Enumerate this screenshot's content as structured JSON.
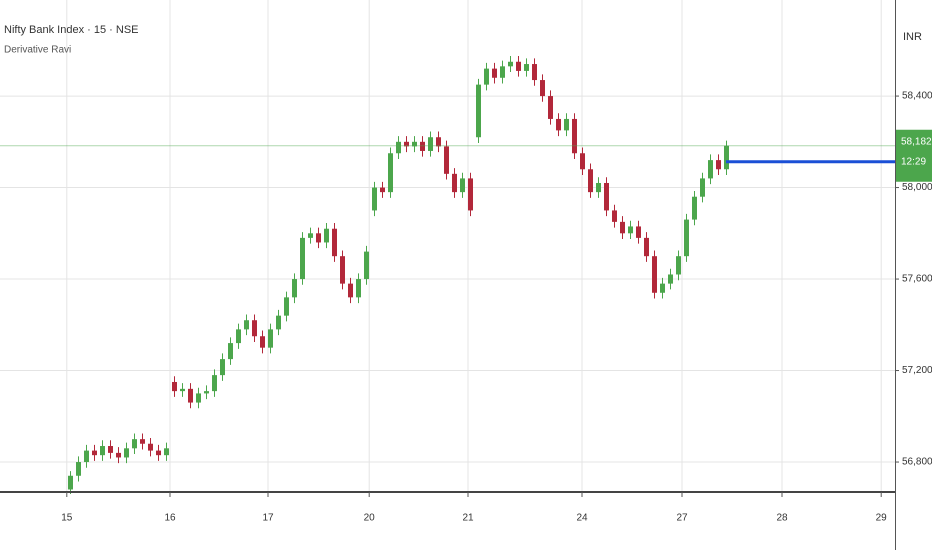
{
  "chart_data": {
    "type": "candlestick",
    "title": "Nifty Bank Index · 15 · NSE",
    "subtitle": "Derivative Ravi",
    "currency": "INR",
    "up_color": "#4ca64c",
    "down_color": "#b2283a",
    "ohlc": [
      [
        56680,
        56760,
        56660,
        56740
      ],
      [
        56740,
        56825,
        56715,
        56800
      ],
      [
        56800,
        56875,
        56775,
        56850
      ],
      [
        56850,
        56875,
        56805,
        56830
      ],
      [
        56830,
        56895,
        56805,
        56870
      ],
      [
        56870,
        56895,
        56815,
        56840
      ],
      [
        56840,
        56865,
        56795,
        56820
      ],
      [
        56820,
        56885,
        56795,
        56860
      ],
      [
        56860,
        56925,
        56835,
        56900
      ],
      [
        56900,
        56925,
        56855,
        56880
      ],
      [
        56880,
        56905,
        56825,
        56850
      ],
      [
        56850,
        56875,
        56805,
        56830
      ],
      [
        56830,
        56885,
        56805,
        56860
      ],
      [
        57150,
        57175,
        57085,
        57110
      ],
      [
        57110,
        57145,
        57085,
        57120
      ],
      [
        57120,
        57145,
        57035,
        57060
      ],
      [
        57060,
        57125,
        57035,
        57100
      ],
      [
        57100,
        57135,
        57075,
        57110
      ],
      [
        57110,
        57205,
        57085,
        57180
      ],
      [
        57180,
        57275,
        57155,
        57250
      ],
      [
        57250,
        57345,
        57225,
        57320
      ],
      [
        57320,
        57405,
        57295,
        57380
      ],
      [
        57380,
        57445,
        57355,
        57420
      ],
      [
        57420,
        57445,
        57325,
        57350
      ],
      [
        57350,
        57375,
        57275,
        57300
      ],
      [
        57300,
        57405,
        57275,
        57380
      ],
      [
        57380,
        57465,
        57355,
        57440
      ],
      [
        57440,
        57545,
        57415,
        57520
      ],
      [
        57520,
        57625,
        57495,
        57600
      ],
      [
        57600,
        57805,
        57575,
        57780
      ],
      [
        57780,
        57825,
        57755,
        57800
      ],
      [
        57800,
        57825,
        57735,
        57760
      ],
      [
        57760,
        57845,
        57735,
        57820
      ],
      [
        57820,
        57845,
        57675,
        57700
      ],
      [
        57700,
        57725,
        57555,
        57580
      ],
      [
        57580,
        57605,
        57495,
        57520
      ],
      [
        57520,
        57625,
        57495,
        57600
      ],
      [
        57600,
        57745,
        57575,
        57720
      ],
      [
        57900,
        58025,
        57875,
        58000
      ],
      [
        58000,
        58025,
        57955,
        57980
      ],
      [
        57980,
        58175,
        57955,
        58150
      ],
      [
        58150,
        58225,
        58125,
        58200
      ],
      [
        58200,
        58225,
        58155,
        58180
      ],
      [
        58180,
        58225,
        58155,
        58200
      ],
      [
        58200,
        58225,
        58135,
        58160
      ],
      [
        58160,
        58245,
        58135,
        58220
      ],
      [
        58220,
        58245,
        58155,
        58180
      ],
      [
        58180,
        58205,
        58035,
        58060
      ],
      [
        58060,
        58085,
        57955,
        57980
      ],
      [
        57980,
        58065,
        57955,
        58040
      ],
      [
        58040,
        58065,
        57875,
        57900
      ],
      [
        58220,
        58475,
        58195,
        58450
      ],
      [
        58450,
        58545,
        58425,
        58520
      ],
      [
        58520,
        58545,
        58455,
        58480
      ],
      [
        58480,
        58555,
        58455,
        58530
      ],
      [
        58530,
        58575,
        58505,
        58550
      ],
      [
        58550,
        58575,
        58485,
        58510
      ],
      [
        58510,
        58565,
        58485,
        58540
      ],
      [
        58540,
        58565,
        58445,
        58470
      ],
      [
        58470,
        58495,
        58375,
        58400
      ],
      [
        58400,
        58425,
        58275,
        58300
      ],
      [
        58300,
        58325,
        58225,
        58250
      ],
      [
        58250,
        58325,
        58225,
        58300
      ],
      [
        58300,
        58325,
        58125,
        58150
      ],
      [
        58150,
        58175,
        58055,
        58080
      ],
      [
        58080,
        58105,
        57955,
        57980
      ],
      [
        57980,
        58045,
        57955,
        58020
      ],
      [
        58020,
        58045,
        57875,
        57900
      ],
      [
        57900,
        57925,
        57825,
        57850
      ],
      [
        57850,
        57875,
        57775,
        57800
      ],
      [
        57800,
        57855,
        57775,
        57830
      ],
      [
        57830,
        57855,
        57755,
        57780
      ],
      [
        57780,
        57805,
        57675,
        57700
      ],
      [
        57700,
        57725,
        57515,
        57540
      ],
      [
        57540,
        57605,
        57515,
        57580
      ],
      [
        57580,
        57645,
        57555,
        57620
      ],
      [
        57620,
        57725,
        57595,
        57700
      ],
      [
        57700,
        57885,
        57675,
        57860
      ],
      [
        57860,
        57985,
        57835,
        57960
      ],
      [
        57960,
        58065,
        57935,
        58040
      ],
      [
        58040,
        58145,
        58015,
        58120
      ],
      [
        58120,
        58145,
        58055,
        58080
      ],
      [
        58080,
        58205,
        58055,
        58182.8
      ]
    ],
    "xlim": [
      -8.75,
      103.125
    ],
    "xticks": [
      {
        "value": -0.4,
        "label": "15"
      },
      {
        "value": 12.5,
        "label": "16"
      },
      {
        "value": 24.75,
        "label": "17"
      },
      {
        "value": 37.4,
        "label": "20"
      },
      {
        "value": 49.75,
        "label": "21"
      },
      {
        "value": 64,
        "label": "24"
      },
      {
        "value": 76.5,
        "label": "27"
      },
      {
        "value": 89,
        "label": "28"
      },
      {
        "value": 101.4,
        "label": "29"
      }
    ],
    "ylim": [
      56669,
      58820
    ],
    "yticks": [
      {
        "value": 56800,
        "label": "56,800.00"
      },
      {
        "value": 57200,
        "label": "57,200.00"
      },
      {
        "value": 57600,
        "label": "57,600.00"
      },
      {
        "value": 58000,
        "label": "58,000.00"
      },
      {
        "value": 58400,
        "label": "58,400.00"
      }
    ],
    "grid": true,
    "last_price": {
      "value": 58182.8,
      "label": "58,182.80"
    },
    "countdown": "12:29",
    "hline": {
      "value": 58113,
      "color": "#1a4fd6"
    }
  }
}
